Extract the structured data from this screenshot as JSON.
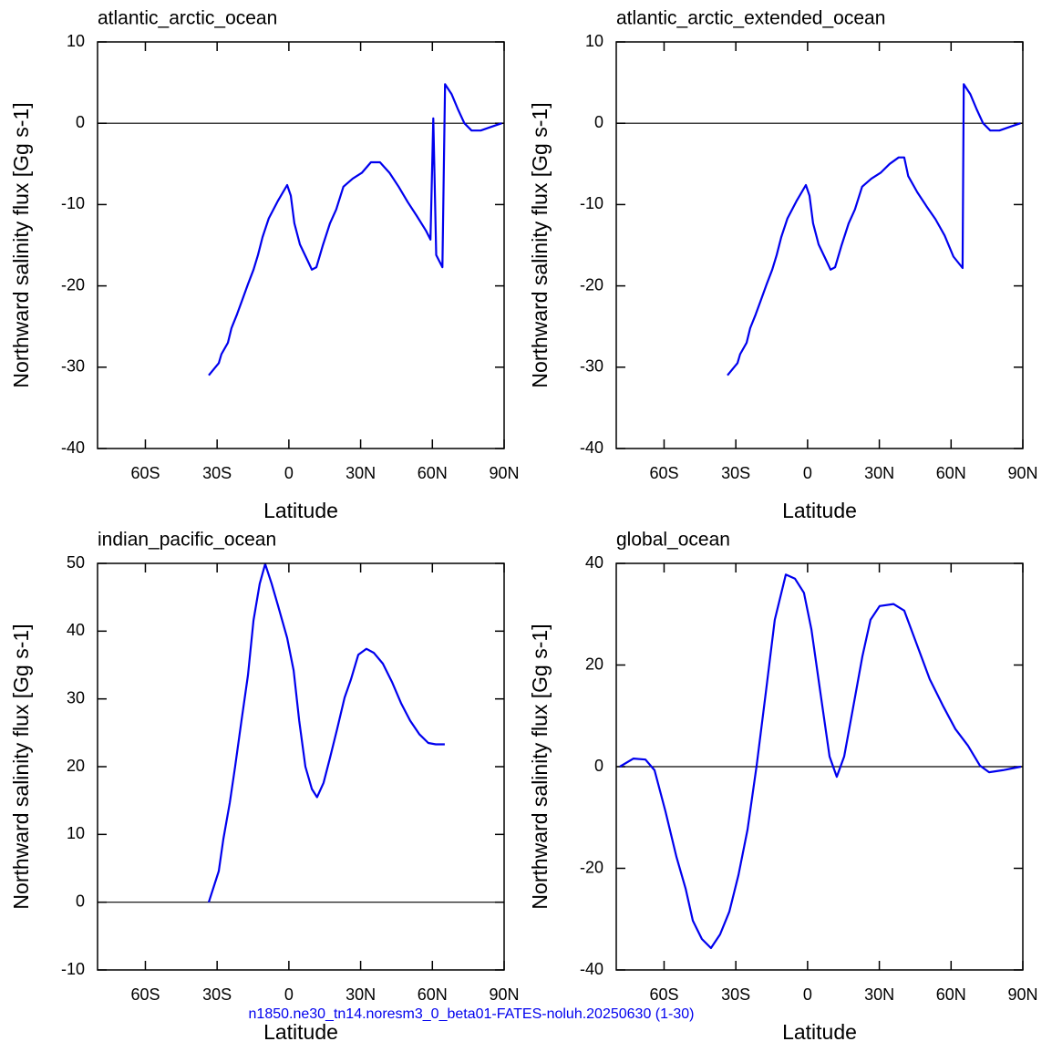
{
  "chart_data": [
    {
      "type": "line",
      "title": "atlantic_arctic_ocean",
      "xlabel": "Latitude",
      "ylabel": "Northward salinity flux [Gg s-1]",
      "color": "#0000ee",
      "xlim": [
        -80,
        90
      ],
      "xticks": [
        {
          "value": -60,
          "label": "60S"
        },
        {
          "value": -30,
          "label": "30S"
        },
        0,
        {
          "value": 30,
          "label": "30N"
        },
        {
          "value": 60,
          "label": "60N"
        },
        {
          "value": 90,
          "label": "90N"
        }
      ],
      "ylim": [
        -40,
        10
      ],
      "yticks": [
        -40,
        -30,
        -20,
        -10,
        0,
        10
      ],
      "hline": 0,
      "x": [
        -33.5,
        -29.3,
        -28.2,
        -25.5,
        -24,
        -21.7,
        -19.8,
        -17.1,
        -14.8,
        -12.9,
        -11,
        -8.4,
        -4.5,
        -0.7,
        0.8,
        2.3,
        4.6,
        7.7,
        9.6,
        11.5,
        14.1,
        17.2,
        19.8,
        22.8,
        26.7,
        30.5,
        34.3,
        38.1,
        42.1,
        45.9,
        49.7,
        53.5,
        57.3,
        59.2,
        60.4,
        61.6,
        64.2,
        65.3,
        68,
        70.7,
        73.4,
        76.4,
        80.2,
        84,
        89
      ],
      "values": [
        -31,
        -29.5,
        -28.4,
        -27,
        -25.2,
        -23.5,
        -22,
        -19.8,
        -18,
        -16.2,
        -14,
        -11.7,
        -9.5,
        -7.6,
        -8.9,
        -12.3,
        -14.9,
        -16.8,
        -18,
        -17.7,
        -15.1,
        -12.3,
        -10.6,
        -7.8,
        -6.8,
        -6.1,
        -4.8,
        -4.8,
        -6.1,
        -7.8,
        -9.7,
        -11.4,
        -13.2,
        -14.3,
        0.6,
        -16.2,
        -17.7,
        4.8,
        3.6,
        1.7,
        0,
        -0.9,
        -0.9,
        -0.5,
        0
      ]
    },
    {
      "type": "line",
      "title": "atlantic_arctic_extended_ocean",
      "xlabel": "Latitude",
      "ylabel": "Northward salinity flux [Gg s-1]",
      "color": "#0000ee",
      "xlim": [
        -80,
        90
      ],
      "xticks": [
        {
          "value": -60,
          "label": "60S"
        },
        {
          "value": -30,
          "label": "30S"
        },
        0,
        {
          "value": 30,
          "label": "30N"
        },
        {
          "value": 60,
          "label": "60N"
        },
        {
          "value": 90,
          "label": "90N"
        }
      ],
      "ylim": [
        -40,
        10
      ],
      "yticks": [
        -40,
        -30,
        -20,
        -10,
        0,
        10
      ],
      "hline": 0,
      "x": [
        -33.5,
        -29.3,
        -28.2,
        -25.5,
        -24,
        -21.7,
        -19.8,
        -17.1,
        -14.8,
        -12.9,
        -11,
        -8.4,
        -4.5,
        -0.7,
        0.8,
        2.3,
        4.6,
        7.7,
        9.6,
        11.5,
        14.1,
        17.2,
        19.8,
        22.8,
        26.7,
        30.5,
        34.3,
        38.1,
        40.4,
        42.1,
        45.9,
        49.7,
        53.5,
        57.3,
        61,
        64.8,
        65.3,
        68,
        70.7,
        73.4,
        76.4,
        80.2,
        84,
        89
      ],
      "values": [
        -31,
        -29.5,
        -28.4,
        -27,
        -25.2,
        -23.5,
        -22,
        -19.8,
        -18,
        -16.2,
        -14,
        -11.7,
        -9.5,
        -7.6,
        -8.9,
        -12.3,
        -14.9,
        -16.8,
        -18,
        -17.7,
        -15.1,
        -12.3,
        -10.6,
        -7.8,
        -6.8,
        -6.1,
        -5,
        -4.2,
        -4.2,
        -6.5,
        -8.5,
        -10.2,
        -11.8,
        -13.8,
        -16.4,
        -17.8,
        4.8,
        3.6,
        1.7,
        0,
        -0.9,
        -0.9,
        -0.5,
        0
      ]
    },
    {
      "type": "line",
      "title": "indian_pacific_ocean",
      "xlabel": "Latitude",
      "ylabel": "Northward salinity flux [Gg s-1]",
      "color": "#0000ee",
      "xlim": [
        -80,
        90
      ],
      "xticks": [
        {
          "value": -60,
          "label": "60S"
        },
        {
          "value": -30,
          "label": "30S"
        },
        0,
        {
          "value": 30,
          "label": "30N"
        },
        {
          "value": 60,
          "label": "60N"
        },
        {
          "value": 90,
          "label": "90N"
        }
      ],
      "ylim": [
        -10,
        50
      ],
      "yticks": [
        -10,
        0,
        10,
        20,
        30,
        40,
        50
      ],
      "hline": 0,
      "x": [
        -33.5,
        -29.3,
        -27.4,
        -24.7,
        -22.5,
        -19.8,
        -17.1,
        -14.8,
        -12.2,
        -9.9,
        -7.2,
        -4.5,
        -0.7,
        2,
        4.3,
        6.9,
        9.6,
        11.8,
        14.5,
        17.2,
        20.2,
        23.3,
        25.9,
        29,
        32.4,
        35.5,
        39.3,
        43.1,
        47,
        50.7,
        54.5,
        58.3,
        61.4,
        65.2
      ],
      "values": [
        0,
        4.6,
        9.3,
        14.7,
        20,
        26.8,
        33.5,
        41.6,
        47,
        49.9,
        47,
        43.7,
        39,
        34.2,
        26.8,
        20,
        16.7,
        15.5,
        17.6,
        21.3,
        25.6,
        30.2,
        32.8,
        36.5,
        37.4,
        36.8,
        35.2,
        32.5,
        29.3,
        26.8,
        24.8,
        23.5,
        23.3,
        23.3
      ]
    },
    {
      "type": "line",
      "title": "global_ocean",
      "xlabel": "Latitude",
      "ylabel": "Northward salinity flux [Gg s-1]",
      "color": "#0000ee",
      "xlim": [
        -80,
        90
      ],
      "xticks": [
        {
          "value": -60,
          "label": "60S"
        },
        {
          "value": -30,
          "label": "30S"
        },
        0,
        {
          "value": 30,
          "label": "30N"
        },
        {
          "value": 60,
          "label": "60N"
        },
        {
          "value": 90,
          "label": "90N"
        }
      ],
      "ylim": [
        -40,
        40
      ],
      "yticks": [
        -40,
        -20,
        0,
        20,
        40
      ],
      "hline": 0,
      "x": [
        -78.5,
        -72.8,
        -67.8,
        -64,
        -59.4,
        -54.8,
        -51,
        -48,
        -44.2,
        -40.4,
        -36.6,
        -32.7,
        -28.9,
        -25.1,
        -21.3,
        -17.5,
        -13.7,
        -9.1,
        -5.3,
        -1.5,
        1.6,
        5.4,
        9.2,
        12.2,
        15.3,
        19.1,
        22.9,
        26.3,
        30.1,
        35.9,
        40.4,
        45.4,
        51.1,
        56.8,
        61.8,
        67.1,
        72.1,
        75.9,
        81.6,
        89.2
      ],
      "values": [
        0,
        1.6,
        1.4,
        -0.7,
        -8.8,
        -17.8,
        -24,
        -30.3,
        -33.9,
        -35.7,
        -33,
        -28.5,
        -21.3,
        -12.4,
        0.2,
        14.5,
        28.9,
        37.8,
        37,
        34.2,
        27,
        14.5,
        2,
        -2,
        2,
        11.8,
        21.7,
        28.9,
        31.6,
        32,
        30.7,
        24.4,
        17.2,
        11.8,
        7.4,
        4.1,
        0.2,
        -1.1,
        -0.7,
        0
      ]
    }
  ],
  "caption": "n1850.ne30_tn14.noresm3_0_beta01-FATES-noluh.20250630 (1-30)"
}
